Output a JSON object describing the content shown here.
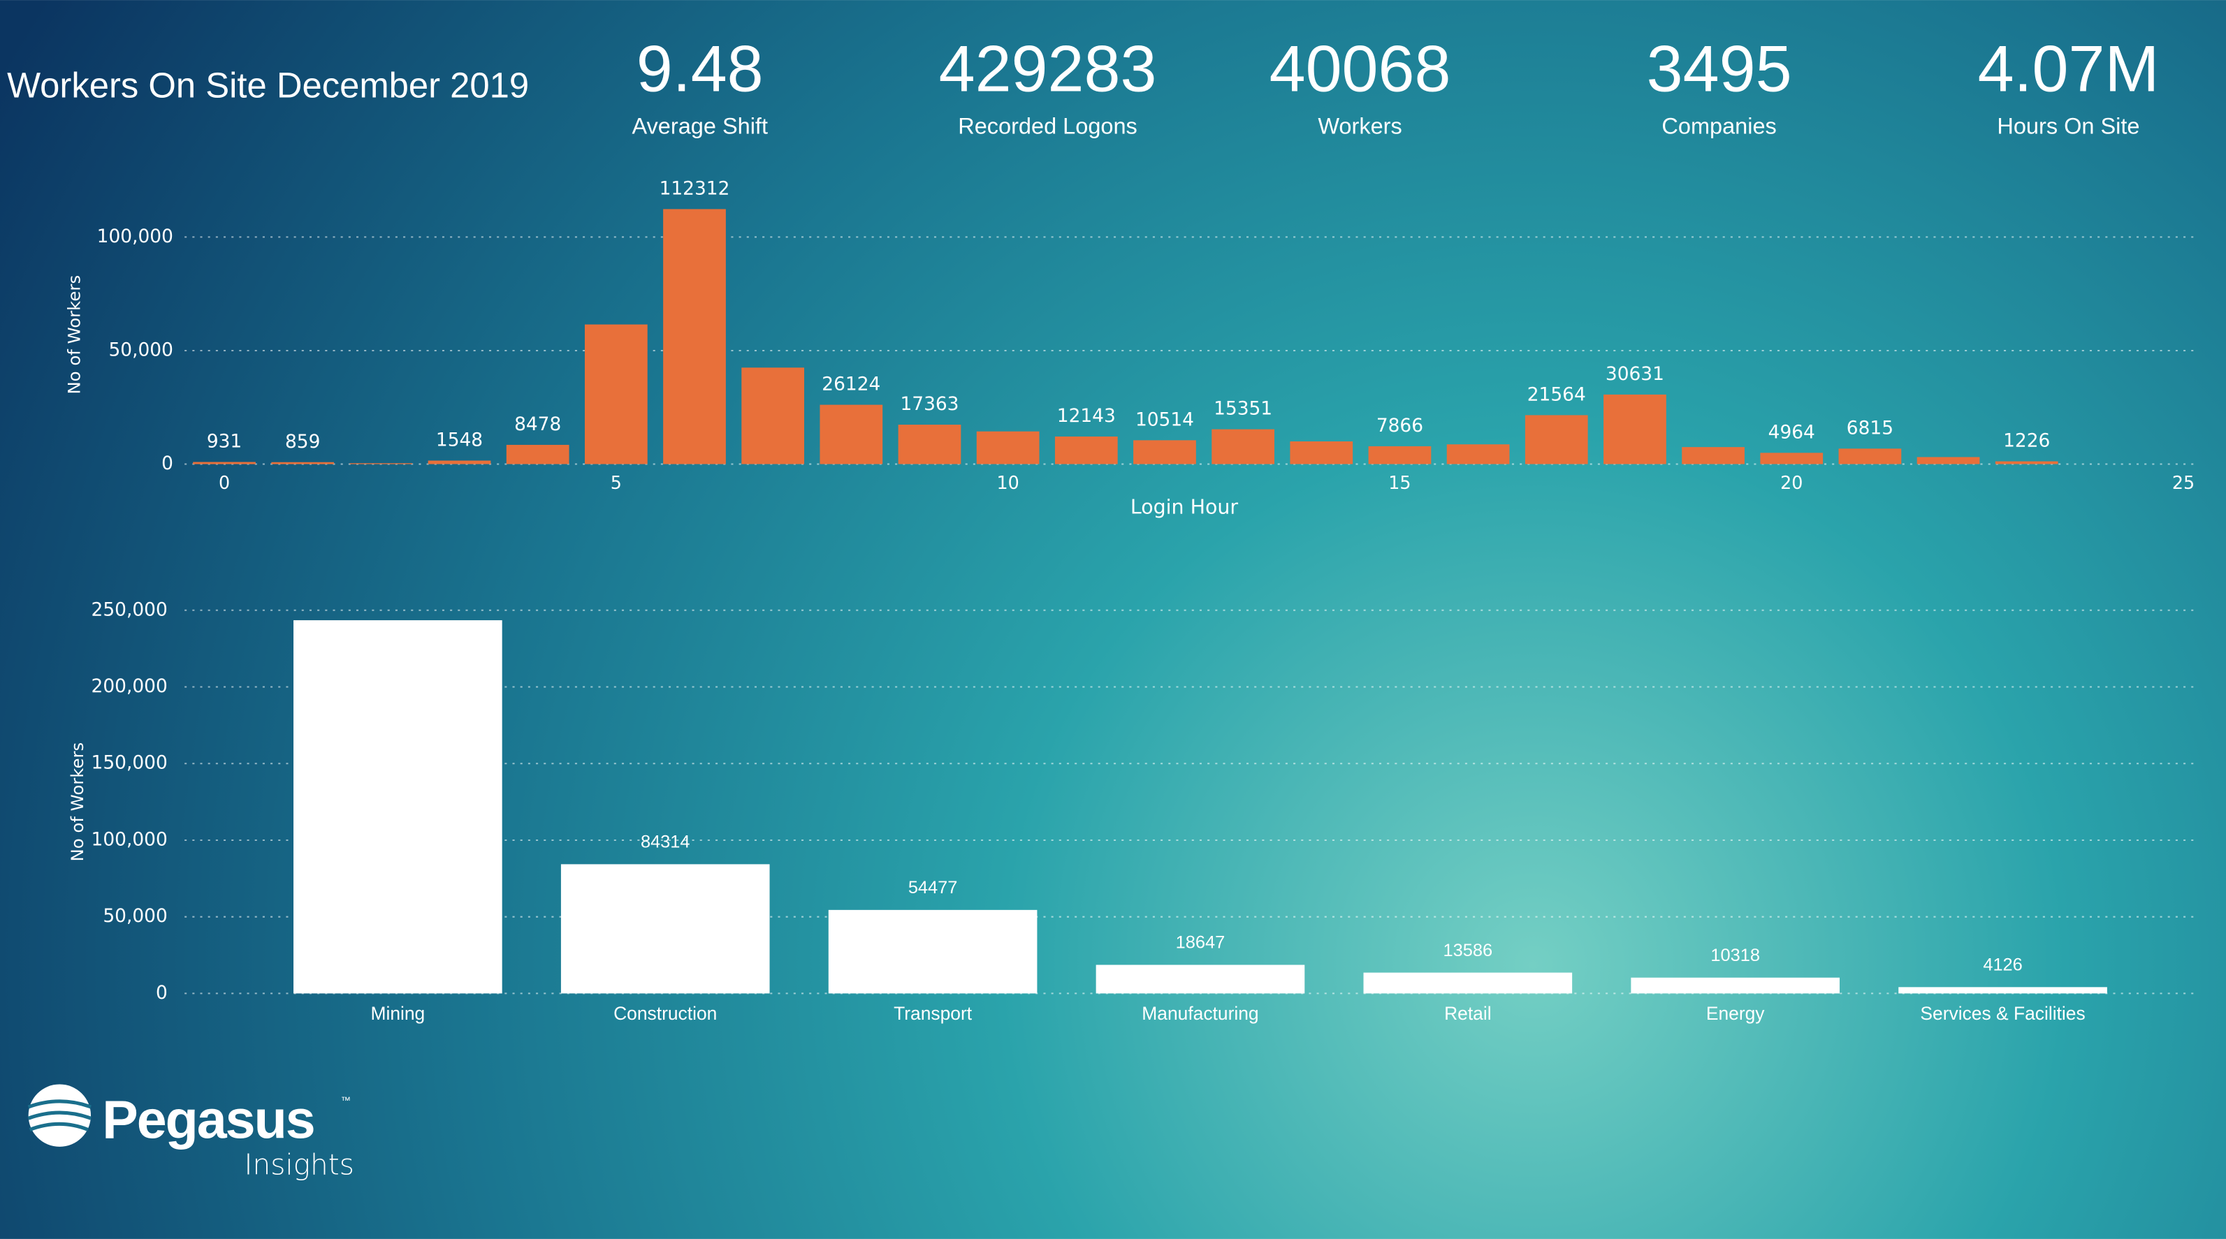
{
  "header": {
    "title": "Workers On Site December 2019"
  },
  "kpis": [
    {
      "value": 9.48,
      "label": "Average Shift"
    },
    {
      "value": 429283,
      "label": "Recorded Logons"
    },
    {
      "value": 40068,
      "label": "Workers"
    },
    {
      "value": 3495,
      "label": "Companies"
    },
    {
      "value": "4.07M",
      "label": "Hours On Site"
    }
  ],
  "logo": {
    "name": "Pegasus",
    "mark": "™",
    "sub": "Insights"
  },
  "chart_data": [
    {
      "type": "bar",
      "x_label": "Login Hour",
      "y_label": "No of Workers",
      "color": "#e8703a",
      "x": [
        0,
        1,
        2,
        3,
        4,
        5,
        6,
        7,
        8,
        9,
        10,
        11,
        12,
        13,
        14,
        15,
        16,
        17,
        18,
        19,
        20,
        21,
        22,
        23
      ],
      "values": [
        931,
        859,
        400,
        1548,
        8478,
        61500,
        112312,
        42500,
        26124,
        17363,
        14400,
        12143,
        10514,
        15351,
        10000,
        7866,
        8700,
        21564,
        30631,
        7500,
        4964,
        6815,
        3100,
        1226
      ],
      "value_labels": [
        "931",
        "859",
        null,
        "1548",
        "8478",
        null,
        "112312",
        null,
        "26124",
        "17363",
        null,
        "12143",
        "10514",
        "15351",
        null,
        "7866",
        null,
        "21564",
        "30631",
        null,
        "4964",
        "6815",
        null,
        "1226"
      ],
      "xlim": [
        -0.5,
        25
      ],
      "xticks": [
        0,
        5,
        10,
        15,
        20,
        25
      ],
      "ylim": [
        0,
        114000
      ],
      "yticks": [
        0,
        {
          "value": 50000,
          "label": "50,000"
        },
        {
          "value": 100000,
          "label": "100,000"
        }
      ],
      "grid": true
    },
    {
      "type": "bar",
      "y_label": "No of Workers",
      "color": "#ffffff",
      "categories": [
        "Mining",
        "Construction",
        "Transport",
        "Manufacturing",
        "Retail",
        "Energy",
        "Services & Facilities"
      ],
      "values": [
        243500,
        84314,
        54477,
        18647,
        13586,
        10318,
        4126
      ],
      "value_labels": [
        null,
        "84314",
        "54477",
        "18647",
        "13586",
        "10318",
        "4126"
      ],
      "ylim": [
        0,
        250000
      ],
      "yticks": [
        0,
        {
          "value": 50000,
          "label": "50,000"
        },
        {
          "value": 100000,
          "label": "100,000"
        },
        {
          "value": 150000,
          "label": "150,000"
        },
        {
          "value": 200000,
          "label": "200,000"
        },
        {
          "value": 250000,
          "label": "250,000"
        }
      ],
      "grid": true
    }
  ]
}
